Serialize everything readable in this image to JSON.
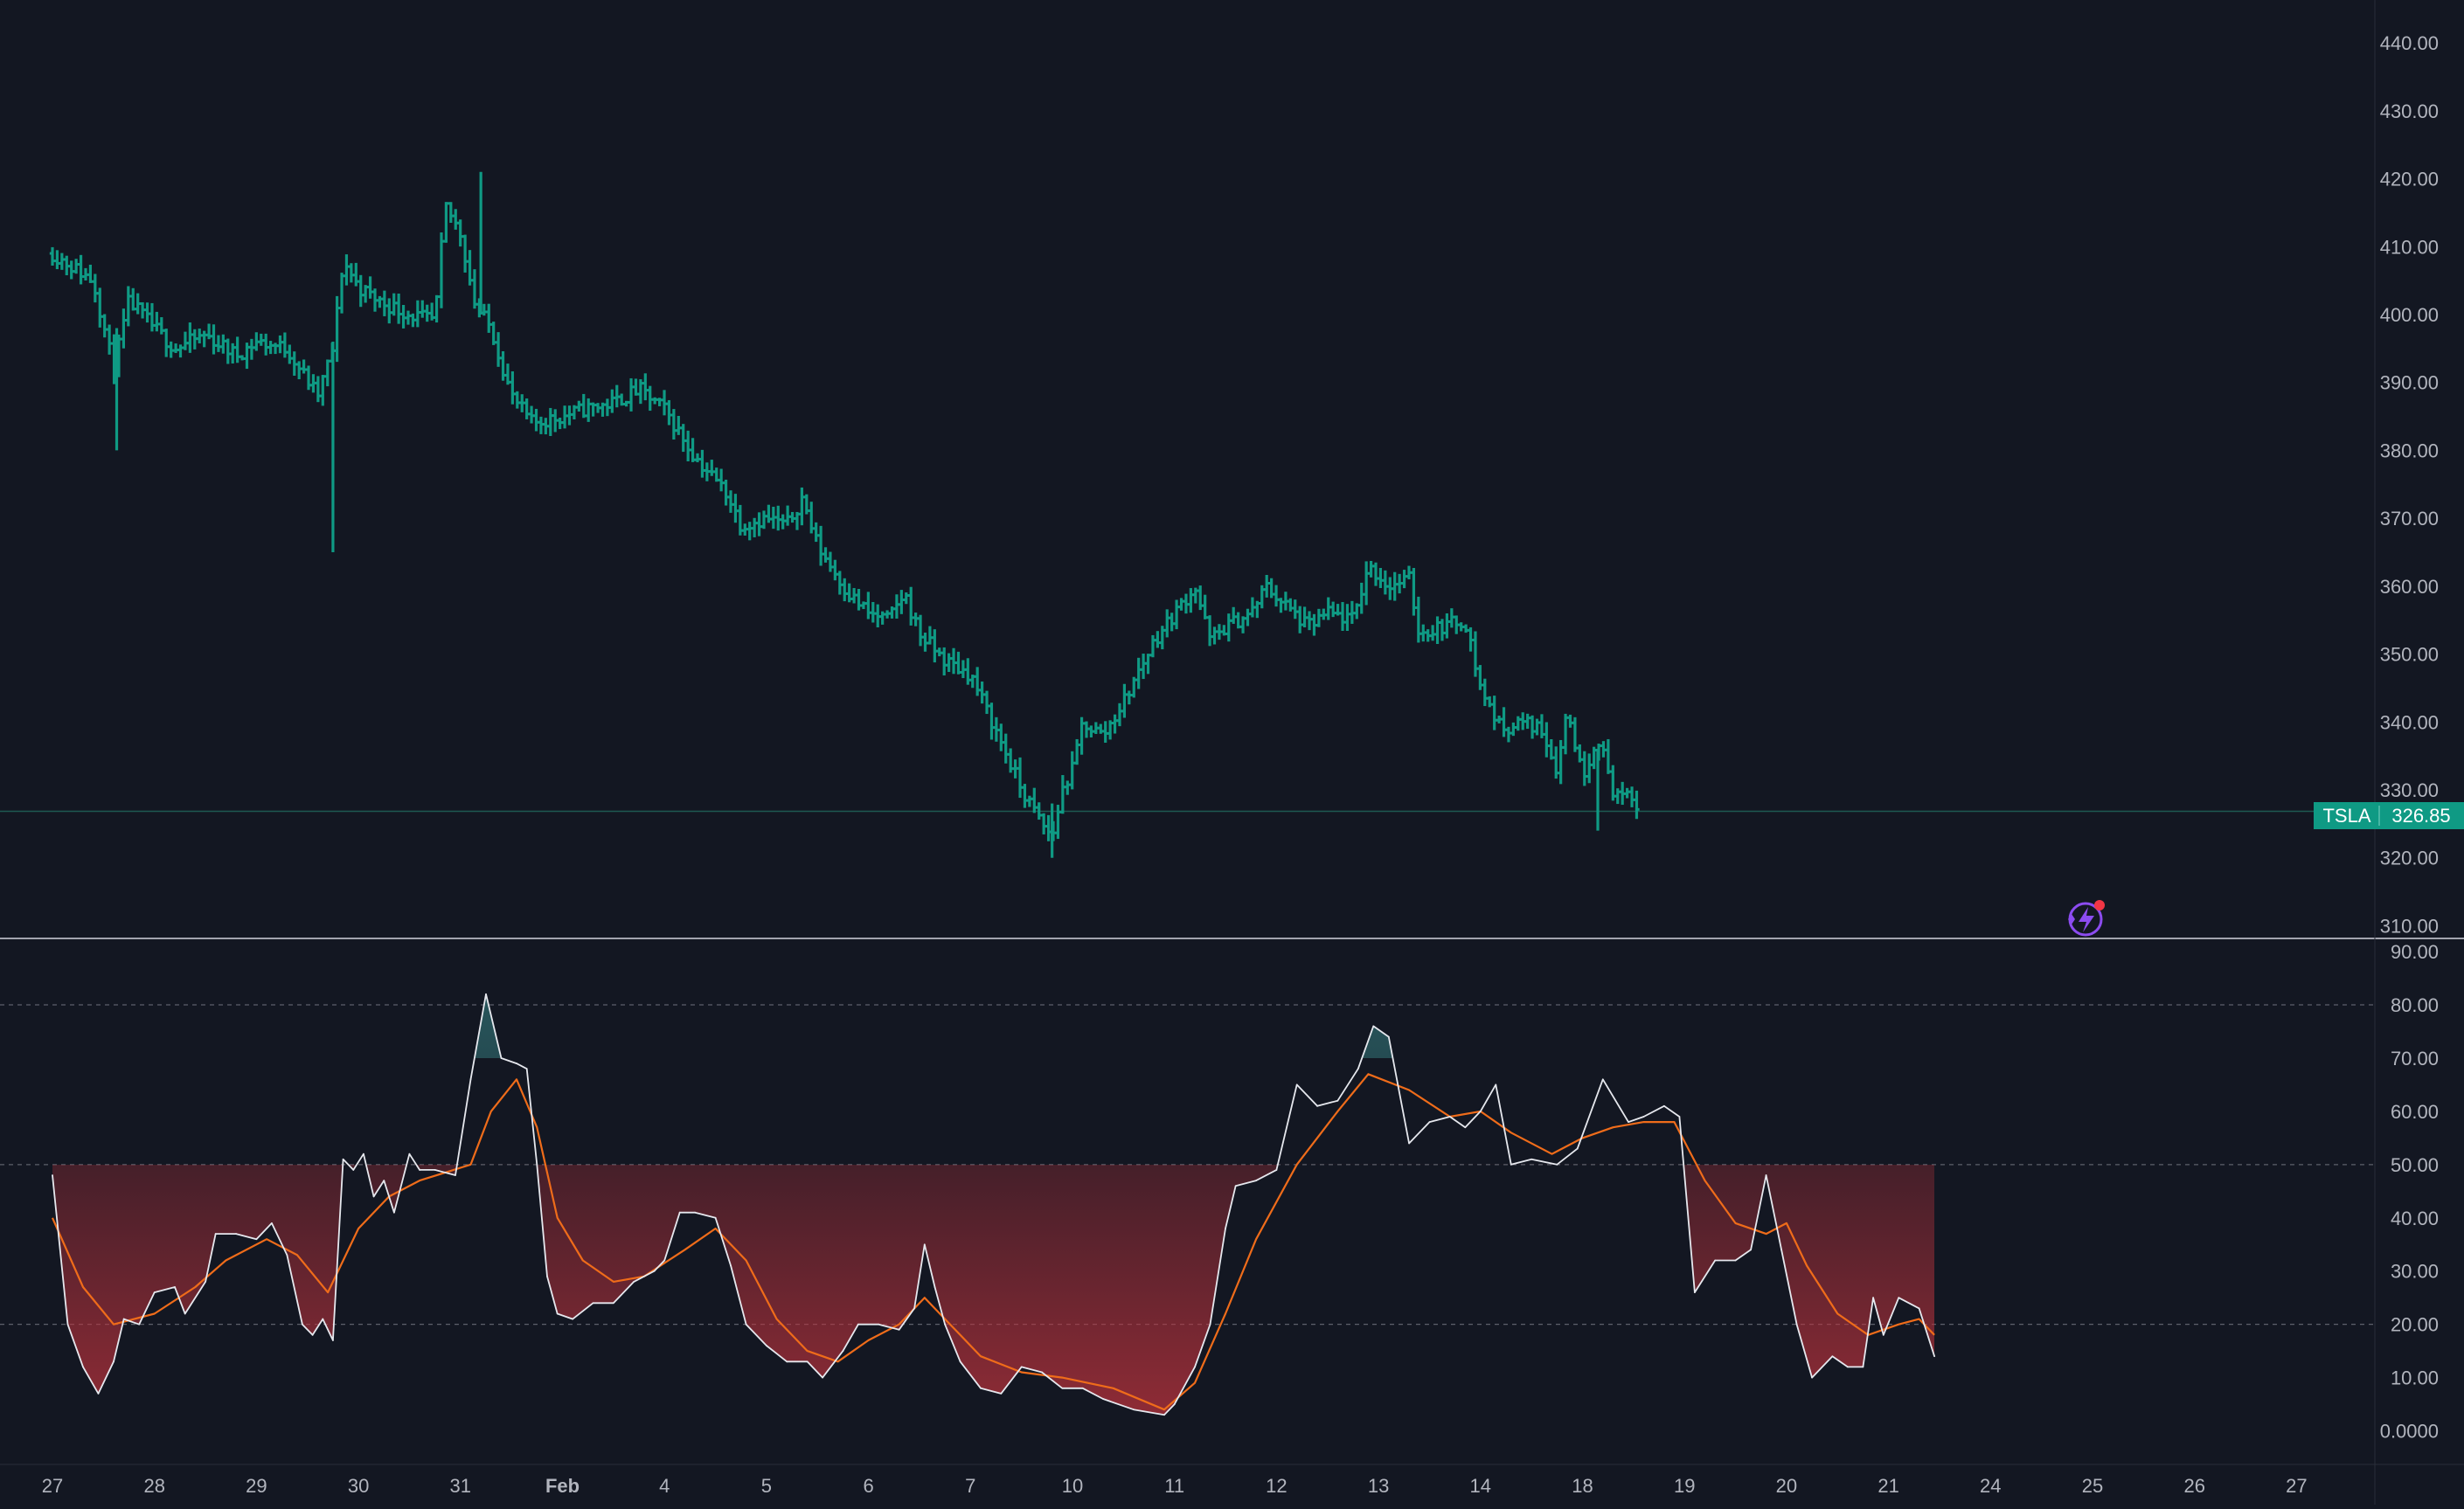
{
  "colors": {
    "background": "#131722",
    "bar": "#0f9a84",
    "axis_text": "#b2b5be",
    "grid_line": "#2a2e39",
    "divider": "#d1d4dc",
    "rsi_line": "#e6e8ee",
    "rsi_ma_line": "#ef6c1a",
    "oversold_fill": "#b8323c",
    "overbought_fill": "#22444a",
    "last_price_label": "#0f9a84",
    "last_price_line": "#1e5a52",
    "badge_purple": "#8c4cf0",
    "badge_red": "#f23645"
  },
  "price_tag": {
    "symbol": "TSLA",
    "value": "326.85"
  },
  "x_axis_labels": [
    "27",
    "28",
    "29",
    "30",
    "31",
    "Feb",
    "4",
    "5",
    "6",
    "7",
    "10",
    "11",
    "12",
    "13",
    "14",
    "18",
    "19",
    "20",
    "21",
    "24",
    "25",
    "26",
    "27"
  ],
  "icons": {
    "badge": "lightning-badge-icon"
  },
  "chart_data": [
    {
      "type": "bar",
      "symbol": "TSLA",
      "style": "OHLC bars",
      "x_axis_ticks": [
        "27",
        "28",
        "29",
        "30",
        "31",
        "Feb",
        "4",
        "5",
        "6",
        "7",
        "10",
        "11",
        "12",
        "13",
        "14",
        "18",
        "19",
        "20",
        "21",
        "24",
        "25",
        "26",
        "27"
      ],
      "y_axis_ticks": [
        "310.00",
        "320.00",
        "330.00",
        "340.00",
        "350.00",
        "360.00",
        "370.00",
        "380.00",
        "390.00",
        "400.00",
        "410.00",
        "420.00",
        "430.00",
        "440.00"
      ],
      "ylim": [
        308,
        444
      ],
      "last_price": 326.85,
      "close_path": [
        {
          "x": 0.0,
          "y": 409
        },
        {
          "x": 0.4,
          "y": 405
        },
        {
          "x": 0.6,
          "y": 392
        },
        {
          "x": 0.75,
          "y": 402
        },
        {
          "x": 1.0,
          "y": 398
        },
        {
          "x": 1.2,
          "y": 395
        },
        {
          "x": 1.5,
          "y": 397
        },
        {
          "x": 1.8,
          "y": 394
        },
        {
          "x": 2.0,
          "y": 396
        },
        {
          "x": 2.3,
          "y": 395
        },
        {
          "x": 2.6,
          "y": 388
        },
        {
          "x": 2.75,
          "y": 395
        },
        {
          "x": 2.85,
          "y": 408
        },
        {
          "x": 3.0,
          "y": 404
        },
        {
          "x": 3.2,
          "y": 402
        },
        {
          "x": 3.5,
          "y": 400
        },
        {
          "x": 3.75,
          "y": 399
        },
        {
          "x": 3.85,
          "y": 416
        },
        {
          "x": 4.0,
          "y": 412
        },
        {
          "x": 4.15,
          "y": 401
        },
        {
          "x": 4.3,
          "y": 398
        },
        {
          "x": 4.5,
          "y": 388
        },
        {
          "x": 4.7,
          "y": 384
        },
        {
          "x": 5.0,
          "y": 385
        },
        {
          "x": 5.2,
          "y": 386
        },
        {
          "x": 5.5,
          "y": 387
        },
        {
          "x": 5.75,
          "y": 389
        },
        {
          "x": 6.0,
          "y": 386
        },
        {
          "x": 6.3,
          "y": 379
        },
        {
          "x": 6.6,
          "y": 374
        },
        {
          "x": 6.75,
          "y": 369
        },
        {
          "x": 7.0,
          "y": 370
        },
        {
          "x": 7.2,
          "y": 369
        },
        {
          "x": 7.35,
          "y": 373
        },
        {
          "x": 7.5,
          "y": 366
        },
        {
          "x": 7.8,
          "y": 359
        },
        {
          "x": 8.0,
          "y": 356
        },
        {
          "x": 8.2,
          "y": 355
        },
        {
          "x": 8.35,
          "y": 359
        },
        {
          "x": 8.5,
          "y": 353
        },
        {
          "x": 8.75,
          "y": 349
        },
        {
          "x": 9.0,
          "y": 347
        },
        {
          "x": 9.3,
          "y": 337
        },
        {
          "x": 9.5,
          "y": 330
        },
        {
          "x": 9.7,
          "y": 325
        },
        {
          "x": 9.8,
          "y": 323
        },
        {
          "x": 9.9,
          "y": 330
        },
        {
          "x": 10.0,
          "y": 333
        },
        {
          "x": 10.1,
          "y": 340
        },
        {
          "x": 10.3,
          "y": 338
        },
        {
          "x": 10.5,
          "y": 343
        },
        {
          "x": 10.8,
          "y": 352
        },
        {
          "x": 11.0,
          "y": 356
        },
        {
          "x": 11.2,
          "y": 360
        },
        {
          "x": 11.35,
          "y": 352
        },
        {
          "x": 11.5,
          "y": 354
        },
        {
          "x": 11.75,
          "y": 356
        },
        {
          "x": 11.9,
          "y": 360
        },
        {
          "x": 12.1,
          "y": 357
        },
        {
          "x": 12.3,
          "y": 354
        },
        {
          "x": 12.5,
          "y": 356
        },
        {
          "x": 12.75,
          "y": 355
        },
        {
          "x": 12.9,
          "y": 363
        },
        {
          "x": 13.1,
          "y": 360
        },
        {
          "x": 13.3,
          "y": 361
        },
        {
          "x": 13.4,
          "y": 353
        },
        {
          "x": 13.6,
          "y": 354
        },
        {
          "x": 13.85,
          "y": 355
        },
        {
          "x": 14.0,
          "y": 345
        },
        {
          "x": 14.2,
          "y": 339
        },
        {
          "x": 14.4,
          "y": 340
        },
        {
          "x": 14.6,
          "y": 339
        },
        {
          "x": 14.75,
          "y": 333
        },
        {
          "x": 14.85,
          "y": 342
        },
        {
          "x": 15.0,
          "y": 332
        },
        {
          "x": 15.15,
          "y": 338
        },
        {
          "x": 15.3,
          "y": 330
        },
        {
          "x": 15.5,
          "y": 328
        },
        {
          "x": 15.55,
          "y": 327
        }
      ]
    },
    {
      "type": "line",
      "indicator": "RSI",
      "y_axis_ticks": [
        "0.0000",
        "10.00",
        "20.00",
        "30.00",
        "40.00",
        "50.00",
        "60.00",
        "70.00",
        "80.00",
        "90.00"
      ],
      "ylim": [
        -5,
        91
      ],
      "reference_lines": [
        80,
        50,
        20
      ],
      "rsi": [
        {
          "x": 0.0,
          "y": 48
        },
        {
          "x": 0.15,
          "y": 20
        },
        {
          "x": 0.3,
          "y": 12
        },
        {
          "x": 0.45,
          "y": 7
        },
        {
          "x": 0.6,
          "y": 13
        },
        {
          "x": 0.7,
          "y": 21
        },
        {
          "x": 0.85,
          "y": 20
        },
        {
          "x": 1.0,
          "y": 26
        },
        {
          "x": 1.2,
          "y": 27
        },
        {
          "x": 1.3,
          "y": 22
        },
        {
          "x": 1.5,
          "y": 28
        },
        {
          "x": 1.6,
          "y": 37
        },
        {
          "x": 1.8,
          "y": 37
        },
        {
          "x": 2.0,
          "y": 36
        },
        {
          "x": 2.15,
          "y": 39
        },
        {
          "x": 2.3,
          "y": 33
        },
        {
          "x": 2.45,
          "y": 20
        },
        {
          "x": 2.55,
          "y": 18
        },
        {
          "x": 2.65,
          "y": 21
        },
        {
          "x": 2.75,
          "y": 17
        },
        {
          "x": 2.85,
          "y": 51
        },
        {
          "x": 2.95,
          "y": 49
        },
        {
          "x": 3.05,
          "y": 52
        },
        {
          "x": 3.15,
          "y": 44
        },
        {
          "x": 3.25,
          "y": 47
        },
        {
          "x": 3.35,
          "y": 41
        },
        {
          "x": 3.5,
          "y": 52
        },
        {
          "x": 3.6,
          "y": 49
        },
        {
          "x": 3.75,
          "y": 49
        },
        {
          "x": 3.95,
          "y": 48
        },
        {
          "x": 4.1,
          "y": 66
        },
        {
          "x": 4.25,
          "y": 82
        },
        {
          "x": 4.4,
          "y": 70
        },
        {
          "x": 4.55,
          "y": 69
        },
        {
          "x": 4.65,
          "y": 68
        },
        {
          "x": 4.75,
          "y": 50
        },
        {
          "x": 4.85,
          "y": 29
        },
        {
          "x": 4.95,
          "y": 22
        },
        {
          "x": 5.1,
          "y": 21
        },
        {
          "x": 5.3,
          "y": 24
        },
        {
          "x": 5.5,
          "y": 24
        },
        {
          "x": 5.7,
          "y": 28
        },
        {
          "x": 5.9,
          "y": 30
        },
        {
          "x": 6.0,
          "y": 32
        },
        {
          "x": 6.15,
          "y": 41
        },
        {
          "x": 6.3,
          "y": 41
        },
        {
          "x": 6.5,
          "y": 40
        },
        {
          "x": 6.65,
          "y": 31
        },
        {
          "x": 6.8,
          "y": 20
        },
        {
          "x": 7.0,
          "y": 16
        },
        {
          "x": 7.2,
          "y": 13
        },
        {
          "x": 7.4,
          "y": 13
        },
        {
          "x": 7.55,
          "y": 10
        },
        {
          "x": 7.75,
          "y": 15
        },
        {
          "x": 7.9,
          "y": 20
        },
        {
          "x": 8.1,
          "y": 20
        },
        {
          "x": 8.3,
          "y": 19
        },
        {
          "x": 8.45,
          "y": 23
        },
        {
          "x": 8.55,
          "y": 35
        },
        {
          "x": 8.65,
          "y": 27
        },
        {
          "x": 8.75,
          "y": 20
        },
        {
          "x": 8.9,
          "y": 13
        },
        {
          "x": 9.1,
          "y": 8
        },
        {
          "x": 9.3,
          "y": 7
        },
        {
          "x": 9.5,
          "y": 12
        },
        {
          "x": 9.7,
          "y": 11
        },
        {
          "x": 9.9,
          "y": 8
        },
        {
          "x": 10.1,
          "y": 8
        },
        {
          "x": 10.3,
          "y": 6
        },
        {
          "x": 10.6,
          "y": 4
        },
        {
          "x": 10.9,
          "y": 3
        },
        {
          "x": 11.0,
          "y": 5
        },
        {
          "x": 11.2,
          "y": 12
        },
        {
          "x": 11.35,
          "y": 20
        },
        {
          "x": 11.5,
          "y": 38
        },
        {
          "x": 11.6,
          "y": 46
        },
        {
          "x": 11.8,
          "y": 47
        },
        {
          "x": 12.0,
          "y": 49
        },
        {
          "x": 12.2,
          "y": 65
        },
        {
          "x": 12.4,
          "y": 61
        },
        {
          "x": 12.6,
          "y": 62
        },
        {
          "x": 12.8,
          "y": 68
        },
        {
          "x": 12.95,
          "y": 76
        },
        {
          "x": 13.1,
          "y": 74
        },
        {
          "x": 13.3,
          "y": 54
        },
        {
          "x": 13.5,
          "y": 58
        },
        {
          "x": 13.7,
          "y": 59
        },
        {
          "x": 13.85,
          "y": 57
        },
        {
          "x": 14.0,
          "y": 60
        },
        {
          "x": 14.15,
          "y": 65
        },
        {
          "x": 14.3,
          "y": 50
        },
        {
          "x": 14.5,
          "y": 51
        },
        {
          "x": 14.75,
          "y": 50
        },
        {
          "x": 14.95,
          "y": 53
        },
        {
          "x": 15.2,
          "y": 66
        },
        {
          "x": 15.45,
          "y": 58
        },
        {
          "x": 15.6,
          "y": 59
        },
        {
          "x": 15.8,
          "y": 61
        },
        {
          "x": 15.95,
          "y": 59
        },
        {
          "x": 16.1,
          "y": 26
        },
        {
          "x": 16.3,
          "y": 32
        },
        {
          "x": 16.5,
          "y": 32
        },
        {
          "x": 16.65,
          "y": 34
        },
        {
          "x": 16.8,
          "y": 48
        },
        {
          "x": 16.95,
          "y": 34
        },
        {
          "x": 17.1,
          "y": 20
        },
        {
          "x": 17.25,
          "y": 10
        },
        {
          "x": 17.45,
          "y": 14
        },
        {
          "x": 17.6,
          "y": 12
        },
        {
          "x": 17.75,
          "y": 12
        },
        {
          "x": 17.85,
          "y": 25
        },
        {
          "x": 17.95,
          "y": 18
        },
        {
          "x": 18.1,
          "y": 25
        },
        {
          "x": 18.3,
          "y": 23
        },
        {
          "x": 18.45,
          "y": 14
        }
      ],
      "rsi_ma": [
        {
          "x": 0.0,
          "y": 40
        },
        {
          "x": 0.3,
          "y": 27
        },
        {
          "x": 0.6,
          "y": 20
        },
        {
          "x": 1.0,
          "y": 22
        },
        {
          "x": 1.4,
          "y": 27
        },
        {
          "x": 1.7,
          "y": 32
        },
        {
          "x": 2.1,
          "y": 36
        },
        {
          "x": 2.4,
          "y": 33
        },
        {
          "x": 2.7,
          "y": 26
        },
        {
          "x": 3.0,
          "y": 38
        },
        {
          "x": 3.3,
          "y": 44
        },
        {
          "x": 3.6,
          "y": 47
        },
        {
          "x": 4.1,
          "y": 50
        },
        {
          "x": 4.3,
          "y": 60
        },
        {
          "x": 4.55,
          "y": 66
        },
        {
          "x": 4.75,
          "y": 57
        },
        {
          "x": 4.95,
          "y": 40
        },
        {
          "x": 5.2,
          "y": 32
        },
        {
          "x": 5.5,
          "y": 28
        },
        {
          "x": 5.8,
          "y": 29
        },
        {
          "x": 6.2,
          "y": 34
        },
        {
          "x": 6.5,
          "y": 38
        },
        {
          "x": 6.8,
          "y": 32
        },
        {
          "x": 7.1,
          "y": 21
        },
        {
          "x": 7.4,
          "y": 15
        },
        {
          "x": 7.7,
          "y": 13
        },
        {
          "x": 8.0,
          "y": 17
        },
        {
          "x": 8.3,
          "y": 20
        },
        {
          "x": 8.55,
          "y": 25
        },
        {
          "x": 8.8,
          "y": 20
        },
        {
          "x": 9.1,
          "y": 14
        },
        {
          "x": 9.5,
          "y": 11
        },
        {
          "x": 9.9,
          "y": 10
        },
        {
          "x": 10.4,
          "y": 8
        },
        {
          "x": 10.9,
          "y": 4
        },
        {
          "x": 11.2,
          "y": 9
        },
        {
          "x": 11.5,
          "y": 22
        },
        {
          "x": 11.8,
          "y": 36
        },
        {
          "x": 12.2,
          "y": 50
        },
        {
          "x": 12.6,
          "y": 60
        },
        {
          "x": 12.9,
          "y": 67
        },
        {
          "x": 13.3,
          "y": 64
        },
        {
          "x": 13.7,
          "y": 59
        },
        {
          "x": 14.0,
          "y": 60
        },
        {
          "x": 14.3,
          "y": 56
        },
        {
          "x": 14.7,
          "y": 52
        },
        {
          "x": 15.0,
          "y": 55
        },
        {
          "x": 15.3,
          "y": 57
        },
        {
          "x": 15.6,
          "y": 58
        },
        {
          "x": 15.9,
          "y": 58
        },
        {
          "x": 16.2,
          "y": 47
        },
        {
          "x": 16.5,
          "y": 39
        },
        {
          "x": 16.8,
          "y": 37
        },
        {
          "x": 17.0,
          "y": 39
        },
        {
          "x": 17.2,
          "y": 31
        },
        {
          "x": 17.5,
          "y": 22
        },
        {
          "x": 17.8,
          "y": 18
        },
        {
          "x": 18.1,
          "y": 20
        },
        {
          "x": 18.3,
          "y": 21
        },
        {
          "x": 18.45,
          "y": 18
        }
      ]
    }
  ]
}
